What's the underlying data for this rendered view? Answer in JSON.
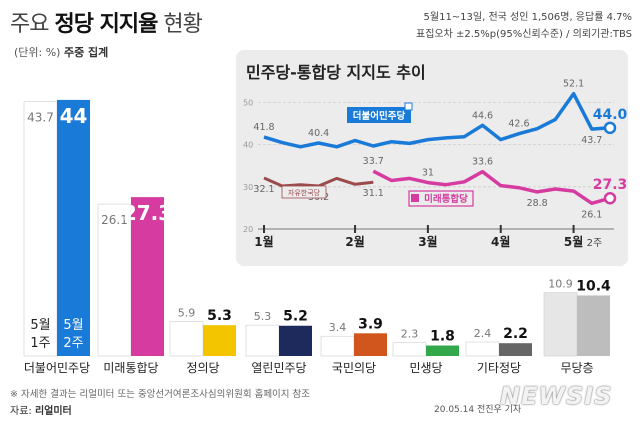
{
  "header": {
    "title_prefix": "주요 ",
    "title_bold": "정당 지지율",
    "title_suffix": " 현황",
    "unit_label": "(단위: %) ",
    "unit_bold": "주중 집계"
  },
  "survey_info": {
    "line1": "5월11~13일, 전국 성인 1,506명, 응답률 4.7%",
    "line2": "표집오차 ±2.5%p(95%신뢰수준) / 의뢰기관:TBS"
  },
  "footer": {
    "note": "※ 자세한 결과는 리얼미터 또는 중앙선거여론조사심의위원회 홈페이지 참조",
    "source_label": "자료: ",
    "source_bold": "리얼미터",
    "date": "20.05.14 전진우 기자",
    "watermark": "NEWSIS"
  },
  "colors": {
    "democratic": "#1a7ad8",
    "united": "#d63ca0",
    "justice": "#f2c500",
    "open_democratic": "#1f2a5c",
    "peoples": "#d0561d",
    "minsaeng": "#33a84a",
    "others": "#666666",
    "independent": "#bdbdbd",
    "prev_bar": "#ffffff",
    "liberty_korea": "#9b4b4b",
    "inset_bg": "#ececec"
  },
  "chart_data": [
    {
      "type": "bar",
      "title": "",
      "categories": [
        "더불어민주당",
        "미래통합당",
        "정의당",
        "열린민주당",
        "국민의당",
        "민생당",
        "기타정당",
        "무당층"
      ],
      "series": [
        {
          "name": "5월 1주",
          "values": [
            43.7,
            26.1,
            5.9,
            5.3,
            3.4,
            2.3,
            2.4,
            10.9
          ]
        },
        {
          "name": "5월 2주",
          "values": [
            44,
            27.3,
            5.3,
            5.2,
            3.9,
            1.8,
            2.2,
            10.4
          ]
        }
      ],
      "value_labels": {
        "prev": [
          "43.7",
          "26.1",
          "5.9",
          "5.3",
          "3.4",
          "2.3",
          "2.4",
          "10.9"
        ],
        "curr": [
          "44",
          "27.3",
          "5.3",
          "5.2",
          "3.9",
          "1.8",
          "2.2",
          "10.4"
        ]
      },
      "bar_text": {
        "prev": "5월 1주",
        "curr": "5월 2주"
      },
      "ylim": [
        0,
        50
      ]
    },
    {
      "type": "line",
      "title": "민주당-통합당 지지도 추이",
      "x_ticks": [
        "1월",
        "2월",
        "3월",
        "4월",
        "5월"
      ],
      "x_tick_suffix": "2주",
      "y_ticks": [
        20,
        30,
        40,
        50
      ],
      "ylim": [
        20,
        52.5
      ],
      "n_weeks": 20,
      "tick_weeks": [
        0,
        5,
        9,
        13,
        17
      ],
      "series": [
        {
          "name": "더불어민주당",
          "color": "#1a7ad8",
          "x": [
            0,
            1,
            2,
            3,
            4,
            5,
            6,
            7,
            8,
            9,
            10,
            11,
            12,
            13,
            14,
            15,
            16,
            17,
            18,
            19
          ],
          "values": [
            41.8,
            40.5,
            39.5,
            40.4,
            39.5,
            41.0,
            39.7,
            40.7,
            40.3,
            41.2,
            41.6,
            41.9,
            44.6,
            41.2,
            42.6,
            43.8,
            46.0,
            52.1,
            43.7,
            44.0
          ]
        },
        {
          "name": "자유한국당",
          "color": "#9b4b4b",
          "x": [
            0,
            1,
            2,
            3,
            4,
            5,
            6
          ],
          "values": [
            32.1,
            30.2,
            30.5,
            30.2,
            32.0,
            30.6,
            31.1
          ]
        },
        {
          "name": "미래통합당",
          "color": "#d63ca0",
          "x": [
            6,
            7,
            8,
            9,
            10,
            11,
            12,
            13,
            14,
            15,
            16,
            17,
            18,
            19
          ],
          "values": [
            33.7,
            31.5,
            32.0,
            31.0,
            30.5,
            31.2,
            33.6,
            30.3,
            29.8,
            28.8,
            29.5,
            29.0,
            26.1,
            27.3
          ]
        }
      ],
      "point_labels": [
        {
          "series": 0,
          "index": 0,
          "text": "41.8",
          "pos": "above"
        },
        {
          "series": 0,
          "index": 3,
          "text": "40.4",
          "pos": "above"
        },
        {
          "series": 0,
          "index": 12,
          "text": "44.6",
          "pos": "above"
        },
        {
          "series": 0,
          "index": 14,
          "text": "42.6",
          "pos": "above"
        },
        {
          "series": 0,
          "index": 17,
          "text": "52.1",
          "pos": "above"
        },
        {
          "series": 0,
          "index": 18,
          "text": "43.7",
          "pos": "below"
        },
        {
          "series": 1,
          "index": 0,
          "text": "32.1",
          "pos": "below"
        },
        {
          "series": 1,
          "index": 3,
          "text": "30.2",
          "pos": "below"
        },
        {
          "series": 1,
          "index": 6,
          "text": "31.1",
          "pos": "below"
        },
        {
          "series": 2,
          "index": 0,
          "text": "33.7",
          "pos": "above"
        },
        {
          "series": 2,
          "index": 3,
          "text": "31",
          "pos": "above"
        },
        {
          "series": 2,
          "index": 6,
          "text": "33.6",
          "pos": "above"
        },
        {
          "series": 2,
          "index": 9,
          "text": "28.8",
          "pos": "below"
        },
        {
          "series": 2,
          "index": 12,
          "text": "26.1",
          "pos": "below"
        }
      ],
      "end_labels": [
        {
          "series": 0,
          "text": "44.0"
        },
        {
          "series": 2,
          "text": "27.3"
        }
      ],
      "legend": [
        {
          "series": 0,
          "text": "더불어민주당",
          "style": "box"
        },
        {
          "series": 1,
          "text": "자유한국당",
          "style": "box"
        },
        {
          "series": 2,
          "text": "미래통합당",
          "style": "box"
        }
      ]
    }
  ]
}
